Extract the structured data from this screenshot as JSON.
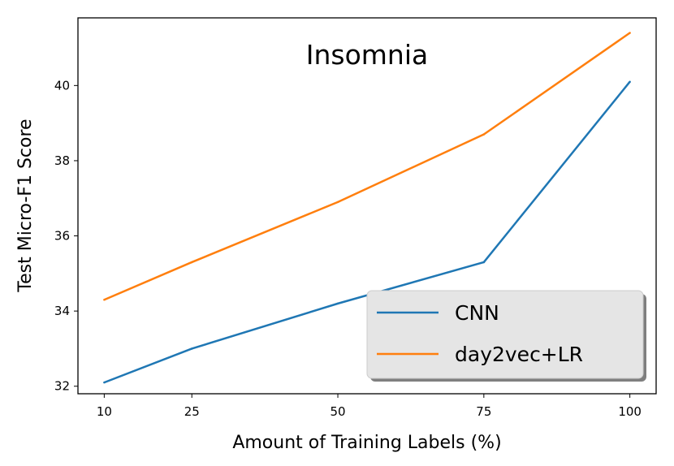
{
  "chart_data": {
    "type": "line",
    "title": "Insomnia",
    "xlabel": "Amount of Training Labels (%)",
    "ylabel": "Test Micro-F1 Score",
    "x": [
      10,
      25,
      50,
      75,
      100
    ],
    "xticks": [
      "10",
      "25",
      "50",
      "75",
      "100"
    ],
    "yticks": [
      "32",
      "34",
      "36",
      "38",
      "40"
    ],
    "xlim": [
      5.5,
      104.5
    ],
    "ylim": [
      31.8,
      41.8
    ],
    "grid": false,
    "legend_position": "lower-right",
    "series": [
      {
        "name": "CNN",
        "color": "#1f77b4",
        "values": [
          32.1,
          33.0,
          34.2,
          35.3,
          40.1
        ]
      },
      {
        "name": "day2vec+LR",
        "color": "#ff7f0e",
        "values": [
          34.3,
          35.3,
          36.9,
          38.7,
          41.4
        ]
      }
    ]
  }
}
